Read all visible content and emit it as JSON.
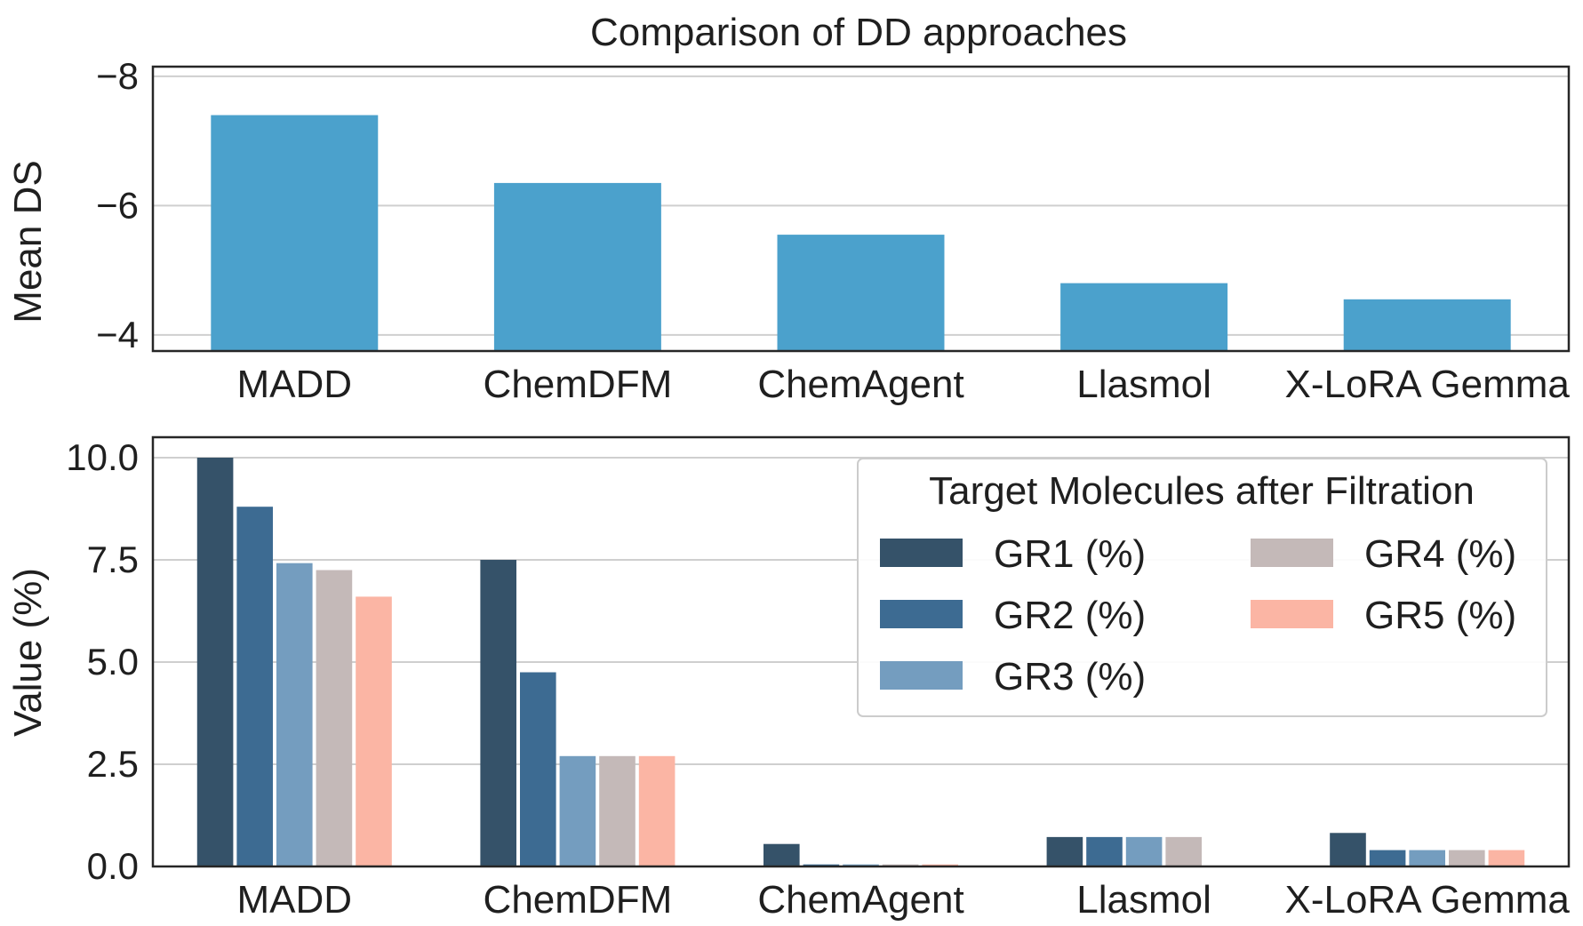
{
  "chart_data": [
    {
      "type": "bar",
      "title": "Comparison of DD approaches",
      "xlabel": "",
      "ylabel": "Mean DS",
      "categories": [
        "MADD",
        "ChemDFM",
        "ChemAgent",
        "Llasmol",
        "X-LoRA Gemma"
      ],
      "values": [
        -7.4,
        -6.35,
        -5.55,
        -4.8,
        -4.55
      ],
      "ylim": [
        -3.75,
        -8.15
      ],
      "yticks": [
        -8,
        -6,
        -4
      ],
      "ytick_labels": [
        "−8",
        "−6",
        "−4"
      ],
      "y_inverted": true,
      "grid": true,
      "bar_color": "#4ba1cc"
    },
    {
      "type": "bar",
      "title": "",
      "xlabel": "",
      "ylabel": "Value (%)",
      "categories": [
        "MADD",
        "ChemDFM",
        "ChemAgent",
        "Llasmol",
        "X-LoRA Gemma"
      ],
      "ylim": [
        0,
        10.5
      ],
      "yticks": [
        0,
        2.5,
        5,
        7.5,
        10
      ],
      "ytick_labels": [
        "0.0",
        "2.5",
        "5.0",
        "7.5",
        "10.0"
      ],
      "grid": true,
      "legend": {
        "title": "Target Molecules after Filtration",
        "placement": "top-right",
        "columns": 2
      },
      "series": [
        {
          "name": "GR1 (%)",
          "color": "#355269",
          "values": [
            10.0,
            7.5,
            0.55,
            0.72,
            0.82
          ]
        },
        {
          "name": "GR2 (%)",
          "color": "#3d6b92",
          "values": [
            8.8,
            4.75,
            0.05,
            0.72,
            0.4
          ]
        },
        {
          "name": "GR3 (%)",
          "color": "#749dbf",
          "values": [
            7.42,
            2.7,
            0.05,
            0.72,
            0.4
          ]
        },
        {
          "name": "GR4 (%)",
          "color": "#c4b9b8",
          "values": [
            7.25,
            2.7,
            0.05,
            0.72,
            0.4
          ]
        },
        {
          "name": "GR5 (%)",
          "color": "#fbb5a4",
          "values": [
            6.6,
            2.7,
            0.05,
            0.0,
            0.4
          ]
        }
      ]
    }
  ]
}
